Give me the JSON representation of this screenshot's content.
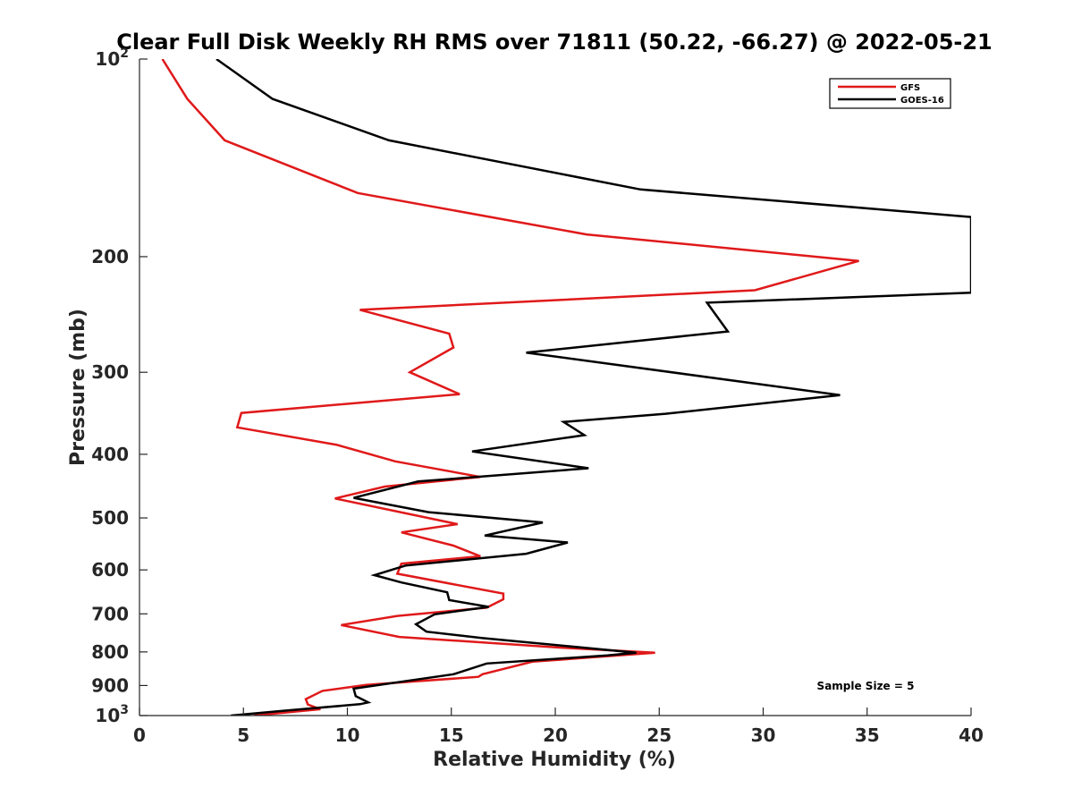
{
  "chart_data": {
    "type": "line",
    "title": "Clear Full Disk Weekly RH RMS over 71811 (50.22, -66.27) @ 2022-05-21",
    "xlabel": "Relative Humidity (%)",
    "ylabel": "Pressure (mb)",
    "xlim": [
      0,
      40
    ],
    "ylim": [
      100,
      1000
    ],
    "yscale": "log",
    "y_reversed": true,
    "x_ticks": [
      "0",
      "5",
      "10",
      "15",
      "20",
      "25",
      "30",
      "35",
      "40"
    ],
    "y_ticks": [
      {
        "value": 100,
        "base": "10",
        "exp": "2"
      },
      {
        "value": 200,
        "label": "200"
      },
      {
        "value": 300,
        "label": "300"
      },
      {
        "value": 400,
        "label": "400"
      },
      {
        "value": 500,
        "label": "500"
      },
      {
        "value": 600,
        "label": "600"
      },
      {
        "value": 700,
        "label": "700"
      },
      {
        "value": 800,
        "label": "800"
      },
      {
        "value": 900,
        "label": "900"
      },
      {
        "value": 1000,
        "base": "10",
        "exp": "3"
      }
    ],
    "grid": false,
    "legend_position": "top-right",
    "annotation": "Sample Size = 5",
    "series": [
      {
        "name": "GFS",
        "color": "#e0191a",
        "points": [
          [
            1.1,
            100
          ],
          [
            2.3,
            115
          ],
          [
            4.1,
            133
          ],
          [
            10.5,
            160
          ],
          [
            21.5,
            185
          ],
          [
            34.6,
            203
          ],
          [
            29.6,
            225
          ],
          [
            10.6,
            241
          ],
          [
            14.9,
            262
          ],
          [
            15.1,
            275
          ],
          [
            13.0,
            300
          ],
          [
            15.4,
            324
          ],
          [
            4.9,
            346
          ],
          [
            4.7,
            364
          ],
          [
            9.5,
            387
          ],
          [
            12.3,
            410
          ],
          [
            16.4,
            433
          ],
          [
            11.8,
            448
          ],
          [
            9.4,
            467
          ],
          [
            15.3,
            511
          ],
          [
            12.6,
            526
          ],
          [
            15.1,
            551
          ],
          [
            16.4,
            572
          ],
          [
            12.6,
            587
          ],
          [
            12.4,
            608
          ],
          [
            17.5,
            652
          ],
          [
            17.5,
            665
          ],
          [
            16.7,
            685
          ],
          [
            12.4,
            705
          ],
          [
            9.7,
            728
          ],
          [
            12.5,
            759
          ],
          [
            20.3,
            788
          ],
          [
            24.8,
            802
          ],
          [
            18.9,
            828
          ],
          [
            16.5,
            865
          ],
          [
            16.3,
            873
          ],
          [
            10.9,
            898
          ],
          [
            8.8,
            917
          ],
          [
            8.0,
            944
          ],
          [
            8.1,
            962
          ],
          [
            8.7,
            978
          ],
          [
            5.5,
            1000
          ]
        ]
      },
      {
        "name": "GOES-16",
        "color": "#000000",
        "points": [
          [
            3.7,
            100
          ],
          [
            6.4,
            115
          ],
          [
            12.0,
            133
          ],
          [
            24.1,
            158
          ],
          [
            40.0,
            174
          ],
          [
            40.0,
            227
          ],
          [
            27.3,
            235
          ],
          [
            28.3,
            260
          ],
          [
            18.6,
            280
          ],
          [
            33.7,
            325
          ],
          [
            25.3,
            347
          ],
          [
            20.4,
            357
          ],
          [
            21.4,
            374
          ],
          [
            16.0,
            396
          ],
          [
            21.6,
            420
          ],
          [
            13.4,
            440
          ],
          [
            10.3,
            466
          ],
          [
            13.9,
            490
          ],
          [
            19.4,
            508
          ],
          [
            16.6,
            532
          ],
          [
            20.6,
            545
          ],
          [
            18.6,
            567
          ],
          [
            12.8,
            591
          ],
          [
            11.3,
            611
          ],
          [
            12.6,
            627
          ],
          [
            14.8,
            649
          ],
          [
            14.9,
            667
          ],
          [
            16.8,
            683
          ],
          [
            14.2,
            701
          ],
          [
            13.3,
            726
          ],
          [
            13.8,
            745
          ],
          [
            16.5,
            762
          ],
          [
            23.9,
            802
          ],
          [
            22.5,
            810
          ],
          [
            16.7,
            833
          ],
          [
            15.1,
            865
          ],
          [
            10.3,
            910
          ],
          [
            10.4,
            934
          ],
          [
            11.0,
            955
          ],
          [
            10.6,
            961
          ],
          [
            7.0,
            983
          ],
          [
            4.4,
            1000
          ]
        ]
      }
    ]
  }
}
